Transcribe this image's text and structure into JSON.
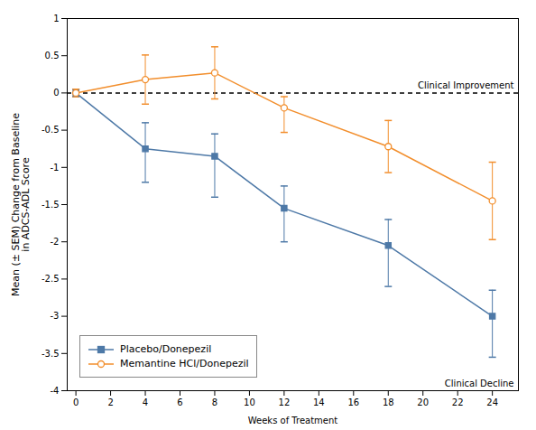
{
  "chart_data": {
    "type": "line",
    "xlabel": "Weeks of Treatment",
    "ylabel": "Mean (± SEM) Change from Baseline\nin ADCS-ADL Score",
    "x": [
      0,
      4,
      8,
      12,
      18,
      24
    ],
    "series": [
      {
        "name": "Placebo/Donepezil",
        "marker": "square",
        "values": [
          0.0,
          -0.75,
          -0.85,
          -1.55,
          -2.05,
          -3.0
        ],
        "err_upper": [
          0.05,
          0.35,
          0.3,
          0.3,
          0.35,
          0.35
        ],
        "err_lower": [
          0.05,
          0.45,
          0.55,
          0.45,
          0.55,
          0.55
        ]
      },
      {
        "name": "Memantine HCl/Donepezil",
        "marker": "open_circle",
        "values": [
          0.0,
          0.18,
          0.27,
          -0.2,
          -0.72,
          -1.45
        ],
        "err_upper": [
          0.05,
          0.33,
          0.35,
          0.15,
          0.35,
          0.52
        ],
        "err_lower": [
          0.05,
          0.33,
          0.35,
          0.33,
          0.35,
          0.52
        ]
      }
    ],
    "hline": {
      "y": 0,
      "line_style": "dashed"
    },
    "annotations": [
      {
        "text": "Clinical Improvement",
        "y": 0
      },
      {
        "text": "Clinical Decline"
      }
    ],
    "xlim": [
      -0.5,
      25.5
    ],
    "ylim": [
      -4.0,
      1.0
    ],
    "xticks": [
      0,
      2,
      4,
      6,
      8,
      10,
      12,
      14,
      16,
      18,
      20,
      22,
      24
    ],
    "yticks": [
      -4.0,
      -3.5,
      -3.0,
      -2.5,
      -2.0,
      -1.5,
      -1.0,
      -0.5,
      0.0,
      0.5,
      1.0
    ],
    "grid": false,
    "legend": "lower left"
  }
}
